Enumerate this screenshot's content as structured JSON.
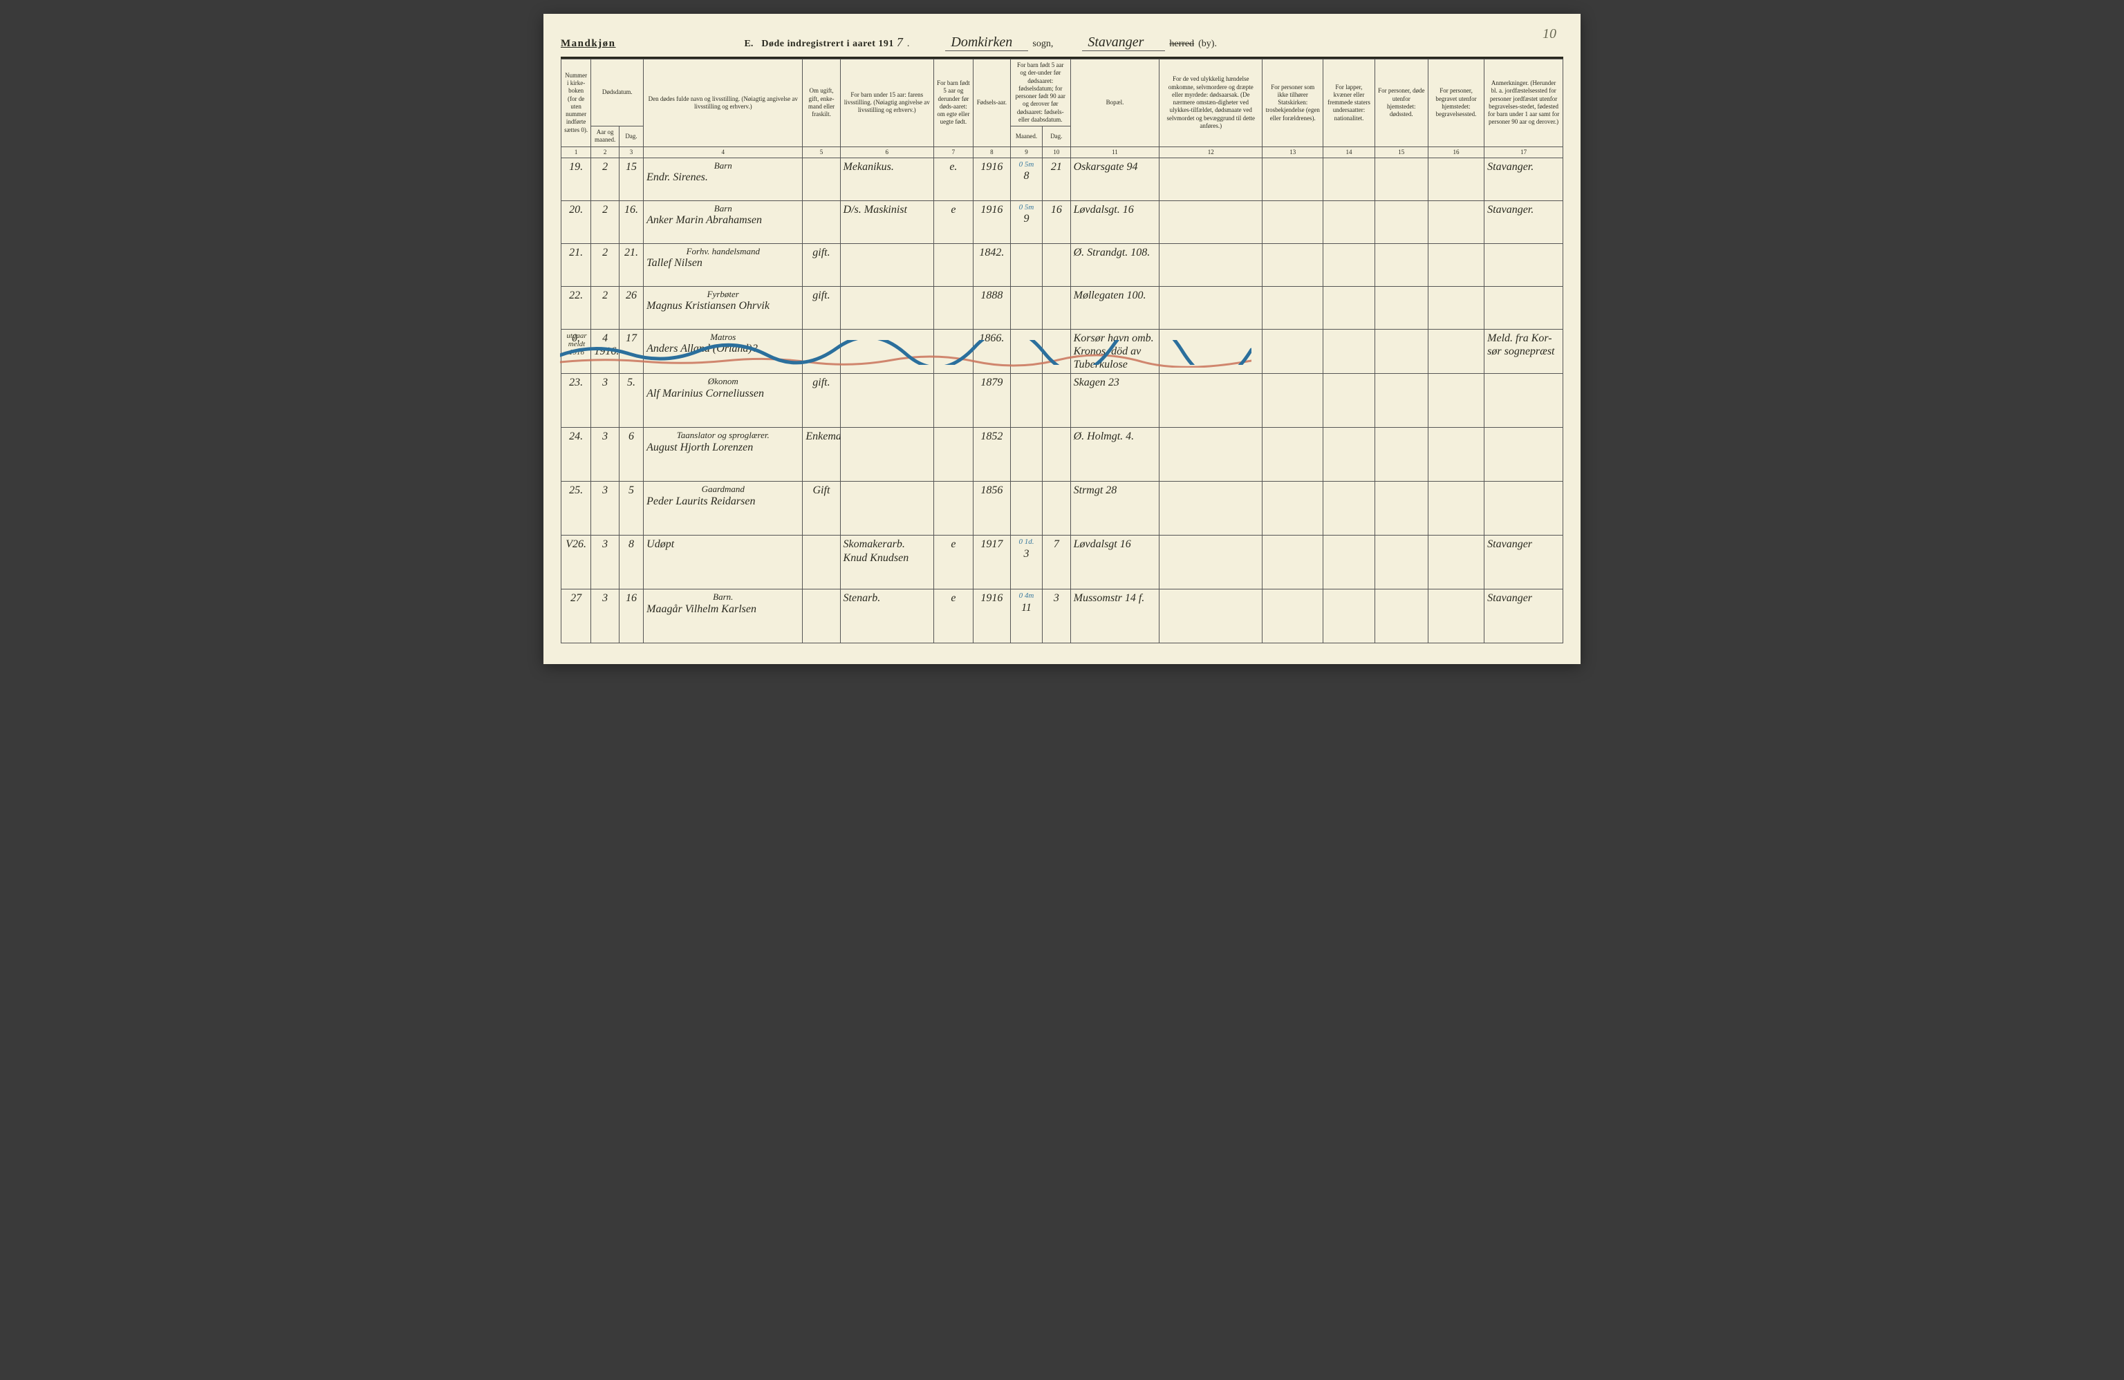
{
  "page_number_corner": "10",
  "header": {
    "gender": "Mandkjøn",
    "title_prefix": "E.",
    "title_text": "Døde indregistrert i aaret 191",
    "year_suffix": "7",
    "sogn_value": "Domkirken",
    "sogn_label": "sogn,",
    "herred_value": "Stavanger",
    "herred_label": "herred",
    "by_label": "(by)."
  },
  "columns": {
    "c1": "Nummer i kirke-boken (for de uten nummer indførte sættes 0).",
    "c2_group": "Dødsdatum.",
    "c2": "Aar og maaned.",
    "c3": "Dag.",
    "c4": "Den dødes fulde navn og livsstilling.\n(Nøiagtig angivelse av livsstilling og erhverv.)",
    "c5": "Om ugift, gift, enke-mand eller fraskilt.",
    "c6": "For barn under 15 aar: farens livsstilling.\n(Nøiagtig angivelse av livsstilling og erhverv.)",
    "c7": "For barn født 5 aar og derunder før døds-aaret: om egte eller uegte født.",
    "c8": "Fødsels-aar.",
    "c9_group": "For barn født 5 aar og der-under før dødsaaret: fødselsdatum; for personer født 90 aar og derover før dødsaaret: fødsels- eller daabsdatum.",
    "c9": "Maaned.",
    "c10": "Dag.",
    "c11": "Bopæl.",
    "c12": "For de ved ulykkelig hændelse omkomne, selvmordere og dræpte eller myrdede: dødsaarsak.\n(De nærmere omstæn-digheter ved ulykkes-tilfældet, dødsmaate ved selvmordet og bevæggrund til dette anføres.)",
    "c13": "For personer som ikke tilhører Statskirken: trosbekjendelse (egen eller forældrenes).",
    "c14": "For lapper, kvæner eller fremmede staters undersaatter: nationalitet.",
    "c15": "For personer, døde utenfor hjemstedet: dødssted.",
    "c16": "For personer, begravet utenfor hjemstedet: begravelsessted.",
    "c17": "Anmerkninger.\n(Herunder bl. a. jordfæstelsessted for personer jordfæstet utenfor begravelses-stedet, fødested for barn under 1 aar samt for personer 90 aar og derover.)"
  },
  "colnums": [
    "1",
    "2",
    "3",
    "4",
    "5",
    "6",
    "7",
    "8",
    "9",
    "10",
    "11",
    "12",
    "13",
    "14",
    "15",
    "16",
    "17"
  ],
  "rows": [
    {
      "num": "19.",
      "aar": "2",
      "dag": "15",
      "name_top": "Barn",
      "name": "Endr. Sirenes.",
      "marital": "",
      "father": "Mekanikus.",
      "legit": "e.",
      "birth_year": "1916",
      "annot": "0 5m",
      "b_m": "8",
      "b_d": "21",
      "addr": "Oskarsgate 94",
      "notes": "Stavanger."
    },
    {
      "num": "20.",
      "aar": "2",
      "dag": "16.",
      "name_top": "Barn",
      "name": "Anker Marin Abrahamsen",
      "marital": "",
      "father": "D/s. Maskinist",
      "legit": "e",
      "birth_year": "1916",
      "annot": "0 5m",
      "b_m": "9",
      "b_d": "16",
      "addr": "Løvdalsgt. 16",
      "notes": "Stavanger."
    },
    {
      "num": "21.",
      "aar": "2",
      "dag": "21.",
      "name_top": "Forhv. handelsmand",
      "name": "Tallef Nilsen",
      "marital": "gift.",
      "father": "",
      "legit": "",
      "birth_year": "1842.",
      "annot": "",
      "b_m": "",
      "b_d": "",
      "addr": "Ø. Strandgt. 108.",
      "notes": ""
    },
    {
      "num": "22.",
      "aar": "2",
      "dag": "26",
      "name_top": "Fyrbøter",
      "name": "Magnus Kristiansen Ohrvik",
      "marital": "gift.",
      "father": "",
      "legit": "",
      "birth_year": "1888",
      "annot": "",
      "b_m": "",
      "b_d": "",
      "addr": "Møllegaten 100.",
      "notes": ""
    },
    {
      "num": "0.",
      "aar": "4\n1916.",
      "dag": "17",
      "name_top": "Matros",
      "name": "Anders Alland (Orland)?",
      "marital": "",
      "father": "",
      "legit": "",
      "birth_year": "1866.",
      "annot": "",
      "b_m": "",
      "b_d": "",
      "addr": "Korsør havn omb. Kronos. död av Tuberkulose",
      "notes": "Meld. fra Kor- sør sognepræst",
      "margin": "utgaar meldt 1916",
      "crossed": true
    },
    {
      "num": "23.",
      "aar": "3",
      "dag": "5.",
      "name_top": "Økonom",
      "name": "Alf Marinius Corneliussen",
      "marital": "gift.",
      "father": "",
      "legit": "",
      "birth_year": "1879",
      "annot": "",
      "b_m": "",
      "b_d": "",
      "addr": "Skagen 23",
      "notes": ""
    },
    {
      "num": "24.",
      "aar": "3",
      "dag": "6",
      "name_top": "Taanslator og sproglærer.",
      "name": "August Hjorth Lorenzen",
      "marital": "Enkemand",
      "father": "",
      "legit": "",
      "birth_year": "1852",
      "annot": "",
      "b_m": "",
      "b_d": "",
      "addr": "Ø. Holmgt. 4.",
      "notes": ""
    },
    {
      "num": "25.",
      "aar": "3",
      "dag": "5",
      "name_top": "Gaardmand",
      "name": "Peder Laurits Reidarsen",
      "marital": "Gift",
      "father": "",
      "legit": "",
      "birth_year": "1856",
      "annot": "",
      "b_m": "",
      "b_d": "",
      "addr": "Strmgt 28",
      "notes": ""
    },
    {
      "num": "V26.",
      "aar": "3",
      "dag": "8",
      "name_top": "",
      "name": "Udøpt",
      "marital": "",
      "father": "Skomakerarb. Knud Knudsen",
      "legit": "e",
      "birth_year": "1917",
      "annot": "0 1d.",
      "b_m": "3",
      "b_d": "7",
      "addr": "Løvdalsgt 16",
      "notes": "Stavanger"
    },
    {
      "num": "27",
      "aar": "3",
      "dag": "16",
      "name_top": "Barn.",
      "name": "Maagår Vilhelm Karlsen",
      "marital": "",
      "father": "Stenarb.",
      "legit": "e",
      "birth_year": "1916",
      "annot": "0 4m",
      "b_m": "11",
      "b_d": "3",
      "addr": "Mussomstr 14 f.",
      "notes": "Stavanger"
    }
  ],
  "style": {
    "paper_bg": "#f4f0dc",
    "ink": "#2a2a20",
    "rule": "#555555",
    "blue_pencil": "#3a7aa0",
    "blue_wave": "#2b6f9c",
    "red_wave": "#c9735a",
    "font_hw": "cursive",
    "font_print": "Georgia, 'Times New Roman', serif",
    "col_widths_pct": [
      3.2,
      3.0,
      2.6,
      17.0,
      4.0,
      10.0,
      4.2,
      4.0,
      3.4,
      3.0,
      9.5,
      11.0,
      6.5,
      5.5,
      5.7,
      6.0,
      8.4
    ]
  }
}
